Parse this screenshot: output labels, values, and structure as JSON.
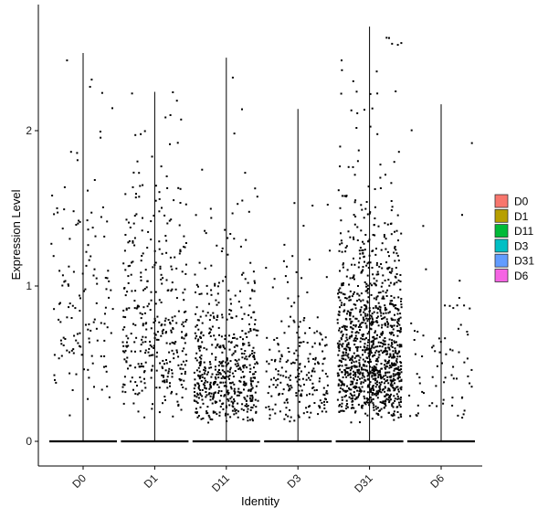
{
  "chart_data": {
    "type": "scatter",
    "subtype": "violin-jitter",
    "xlabel": "Identity",
    "ylabel": "Expression Level",
    "categories": [
      "D0",
      "D1",
      "D11",
      "D3",
      "D31",
      "D6"
    ],
    "yticks": [
      0,
      1,
      2
    ],
    "ylim": [
      -0.08,
      2.7
    ],
    "grid": false,
    "legend_position": "right",
    "legend": [
      {
        "label": "D0",
        "color": "#F8766D"
      },
      {
        "label": "D1",
        "color": "#B79F00"
      },
      {
        "label": "D11",
        "color": "#00BA38"
      },
      {
        "label": "D3",
        "color": "#00BFC4"
      },
      {
        "label": "D31",
        "color": "#619CFF"
      },
      {
        "label": "D6",
        "color": "#F564E3"
      }
    ],
    "series": [
      {
        "category": "D0",
        "max": 2.5,
        "nonzero_points": 140,
        "median_nonzero": 0.9
      },
      {
        "category": "D1",
        "max": 2.25,
        "nonzero_points": 380,
        "median_nonzero": 0.75
      },
      {
        "category": "D11",
        "max": 2.47,
        "nonzero_points": 560,
        "median_nonzero": 0.45
      },
      {
        "category": "D3",
        "max": 2.14,
        "nonzero_points": 230,
        "median_nonzero": 0.45
      },
      {
        "category": "D31",
        "max": 2.67,
        "nonzero_points": 1200,
        "median_nonzero": 0.6
      },
      {
        "category": "D6",
        "max": 2.17,
        "nonzero_points": 75,
        "median_nonzero": 0.5
      }
    ]
  }
}
